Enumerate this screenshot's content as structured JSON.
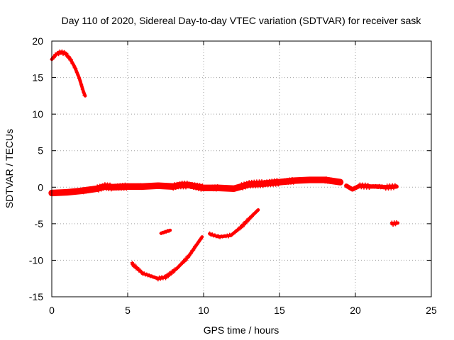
{
  "chart_data": {
    "type": "scatter",
    "title": "Day 110 of 2020, Sidereal Day-to-day VTEC variation (SDTVAR) for receiver sask",
    "xlabel": "GPS time / hours",
    "ylabel": "SDTVAR / TECUs",
    "xlim": [
      0,
      25
    ],
    "ylim": [
      -15,
      20
    ],
    "xticks": [
      "0",
      "5",
      "10",
      "15",
      "20",
      "25"
    ],
    "yticks": [
      "-15",
      "-10",
      "-5",
      "0",
      "5",
      "10",
      "15",
      "20"
    ],
    "grid": true,
    "color": "#ff0000",
    "series": [
      {
        "name": "main-band",
        "band": 0.6,
        "points": [
          [
            0,
            -0.8
          ],
          [
            1,
            -0.7
          ],
          [
            2,
            -0.5
          ],
          [
            3,
            -0.2
          ],
          [
            3.5,
            0.1
          ],
          [
            4,
            0
          ],
          [
            5,
            0.1
          ],
          [
            6,
            0.1
          ],
          [
            7,
            0.2
          ],
          [
            8,
            0.1
          ],
          [
            8.5,
            0.3
          ],
          [
            9,
            0.3
          ],
          [
            10,
            -0.1
          ],
          [
            11,
            -0.1
          ],
          [
            12,
            -0.2
          ],
          [
            12.5,
            0.1
          ],
          [
            13,
            0.4
          ],
          [
            14,
            0.5
          ],
          [
            15,
            0.7
          ],
          [
            16,
            0.9
          ],
          [
            17,
            1.0
          ],
          [
            18,
            1.0
          ],
          [
            19,
            0.7
          ]
        ]
      },
      {
        "name": "arc-early",
        "band": 0.3,
        "points": [
          [
            0,
            17.5
          ],
          [
            0.3,
            18.2
          ],
          [
            0.6,
            18.5
          ],
          [
            0.9,
            18.3
          ],
          [
            1.2,
            17.6
          ],
          [
            1.5,
            16.5
          ],
          [
            1.8,
            15
          ],
          [
            2.1,
            13
          ],
          [
            2.2,
            12.5
          ]
        ]
      },
      {
        "name": "arc-mid",
        "band": 0.3,
        "points": [
          [
            5.3,
            -10.5
          ],
          [
            6,
            -11.8
          ],
          [
            7,
            -12.5
          ],
          [
            7.5,
            -12.3
          ],
          [
            8.2,
            -11.2
          ],
          [
            9,
            -9.5
          ],
          [
            9.5,
            -8
          ],
          [
            9.9,
            -6.8
          ]
        ]
      },
      {
        "name": "short-seg",
        "band": 0.3,
        "points": [
          [
            7.2,
            -6.3
          ],
          [
            7.8,
            -5.9
          ]
        ]
      },
      {
        "name": "arc-late",
        "band": 0.3,
        "points": [
          [
            10.4,
            -6.4
          ],
          [
            11,
            -6.8
          ],
          [
            11.8,
            -6.6
          ],
          [
            12.5,
            -5.4
          ],
          [
            13.2,
            -3.9
          ],
          [
            13.6,
            -3.1
          ]
        ]
      },
      {
        "name": "tail-band",
        "band": 0.4,
        "points": [
          [
            19.4,
            0.2
          ],
          [
            19.8,
            -0.3
          ],
          [
            20.3,
            0.2
          ],
          [
            21,
            0.1
          ],
          [
            21.5,
            0.1
          ],
          [
            22,
            0
          ],
          [
            22.7,
            0.1
          ]
        ]
      },
      {
        "name": "short-seg-2",
        "band": 0.3,
        "points": [
          [
            22.4,
            -5
          ],
          [
            22.8,
            -4.9
          ]
        ]
      }
    ]
  }
}
